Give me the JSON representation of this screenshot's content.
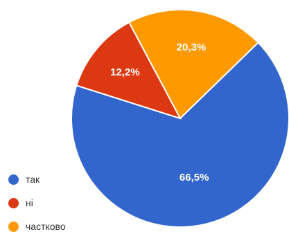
{
  "chart_data": {
    "type": "pie",
    "title": "",
    "categories": [
      "так",
      "ні",
      "частково"
    ],
    "values": [
      66.5,
      12.2,
      20.3
    ],
    "labels": [
      "66,5%",
      "12,2%",
      "20,3%"
    ],
    "colors": [
      "#3366cc",
      "#dc3912",
      "#ff9900"
    ],
    "legend_position": "bottom-left",
    "start_angle_deg": -28,
    "direction": "clockwise"
  }
}
